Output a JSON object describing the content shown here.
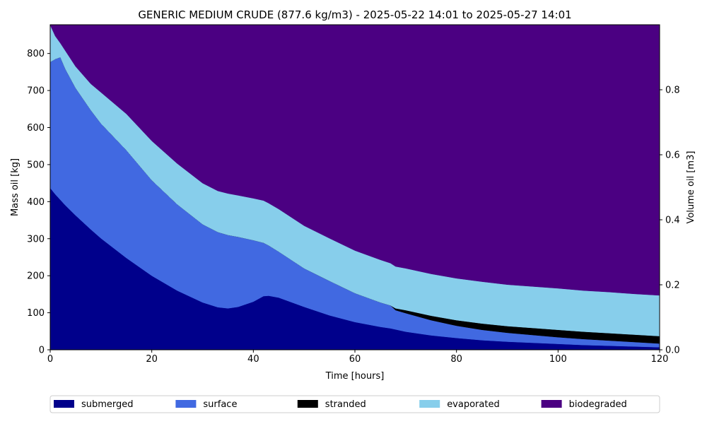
{
  "chart_data": {
    "type": "area",
    "stacked": true,
    "title": "GENERIC MEDIUM CRUDE (877.6 kg/m3) - 2025-05-22 14:01 to 2025-05-27 14:01",
    "xlabel": "Time  [hours]",
    "ylabel": "Mass oil  [kg]",
    "y2label": "Volume oil [m3]",
    "xlim": [
      0,
      120
    ],
    "ylim": [
      0,
      877.6
    ],
    "y2lim": [
      0,
      1.0
    ],
    "x_ticks": [
      "0",
      "20",
      "40",
      "60",
      "80",
      "100",
      "120"
    ],
    "y_ticks": [
      "0",
      "100",
      "200",
      "300",
      "400",
      "500",
      "600",
      "700",
      "800"
    ],
    "y2_ticks": [
      "0.0",
      "0.2",
      "0.4",
      "0.6",
      "0.8"
    ],
    "legend_position": "bottom",
    "x": [
      0,
      1,
      2,
      3,
      5,
      8,
      10,
      15,
      20,
      25,
      30,
      33,
      35,
      37,
      40,
      42,
      43,
      45,
      50,
      55,
      60,
      65,
      67,
      68,
      70,
      75,
      80,
      85,
      90,
      95,
      100,
      105,
      110,
      115,
      120
    ],
    "series": [
      {
        "name": "submerged",
        "color": "#00008b",
        "values": [
          437,
          420,
          405,
          390,
          363,
          325,
          301,
          248,
          200,
          160,
          128,
          115,
          112,
          116,
          130,
          145,
          146,
          141,
          116,
          93,
          75,
          62,
          58,
          55,
          49,
          39,
          32,
          26,
          22,
          19,
          16,
          13,
          11,
          9,
          7
        ]
      },
      {
        "name": "surface",
        "color": "#4169e1",
        "values": [
          340,
          365,
          385,
          368,
          344,
          322,
          310,
          291,
          258,
          233,
          211,
          203,
          198,
          189,
          166,
          144,
          136,
          124,
          104,
          93,
          78,
          66,
          62,
          52,
          50,
          41,
          33,
          28,
          24,
          21,
          18,
          16,
          14,
          12,
          10
        ]
      },
      {
        "name": "stranded",
        "color": "#000000",
        "values": [
          0,
          0,
          0,
          0,
          0,
          0,
          0,
          0,
          0,
          0,
          0,
          0,
          0,
          0,
          0,
          0,
          0,
          0,
          0,
          0,
          0,
          0,
          0,
          5,
          8,
          12,
          15,
          17,
          18,
          19,
          20,
          20,
          20,
          20,
          20
        ]
      },
      {
        "name": "evaporated",
        "color": "#87ceeb",
        "values": [
          100,
          62,
          38,
          49,
          58,
          71,
          84,
          98,
          106,
          110,
          111,
          111,
          112,
          112,
          113,
          114,
          114,
          115,
          115,
          115,
          115,
          115,
          114,
          113,
          113,
          113,
          113,
          113,
          112,
          112,
          112,
          111,
          111,
          110,
          110
        ]
      },
      {
        "name": "biodegraded",
        "color": "#4b0082",
        "values": [
          0.6,
          30.6,
          49.6,
          70.6,
          112.6,
          159.6,
          182.6,
          240.6,
          313.6,
          374.6,
          427.6,
          448.6,
          455.6,
          460.6,
          468.6,
          474.6,
          481.6,
          497.6,
          542.6,
          576.6,
          609.6,
          634.6,
          643.6,
          652.6,
          657.6,
          672.6,
          684.6,
          693.6,
          701.6,
          706.6,
          711.6,
          717.6,
          721.6,
          726.6,
          730.6
        ]
      }
    ]
  }
}
